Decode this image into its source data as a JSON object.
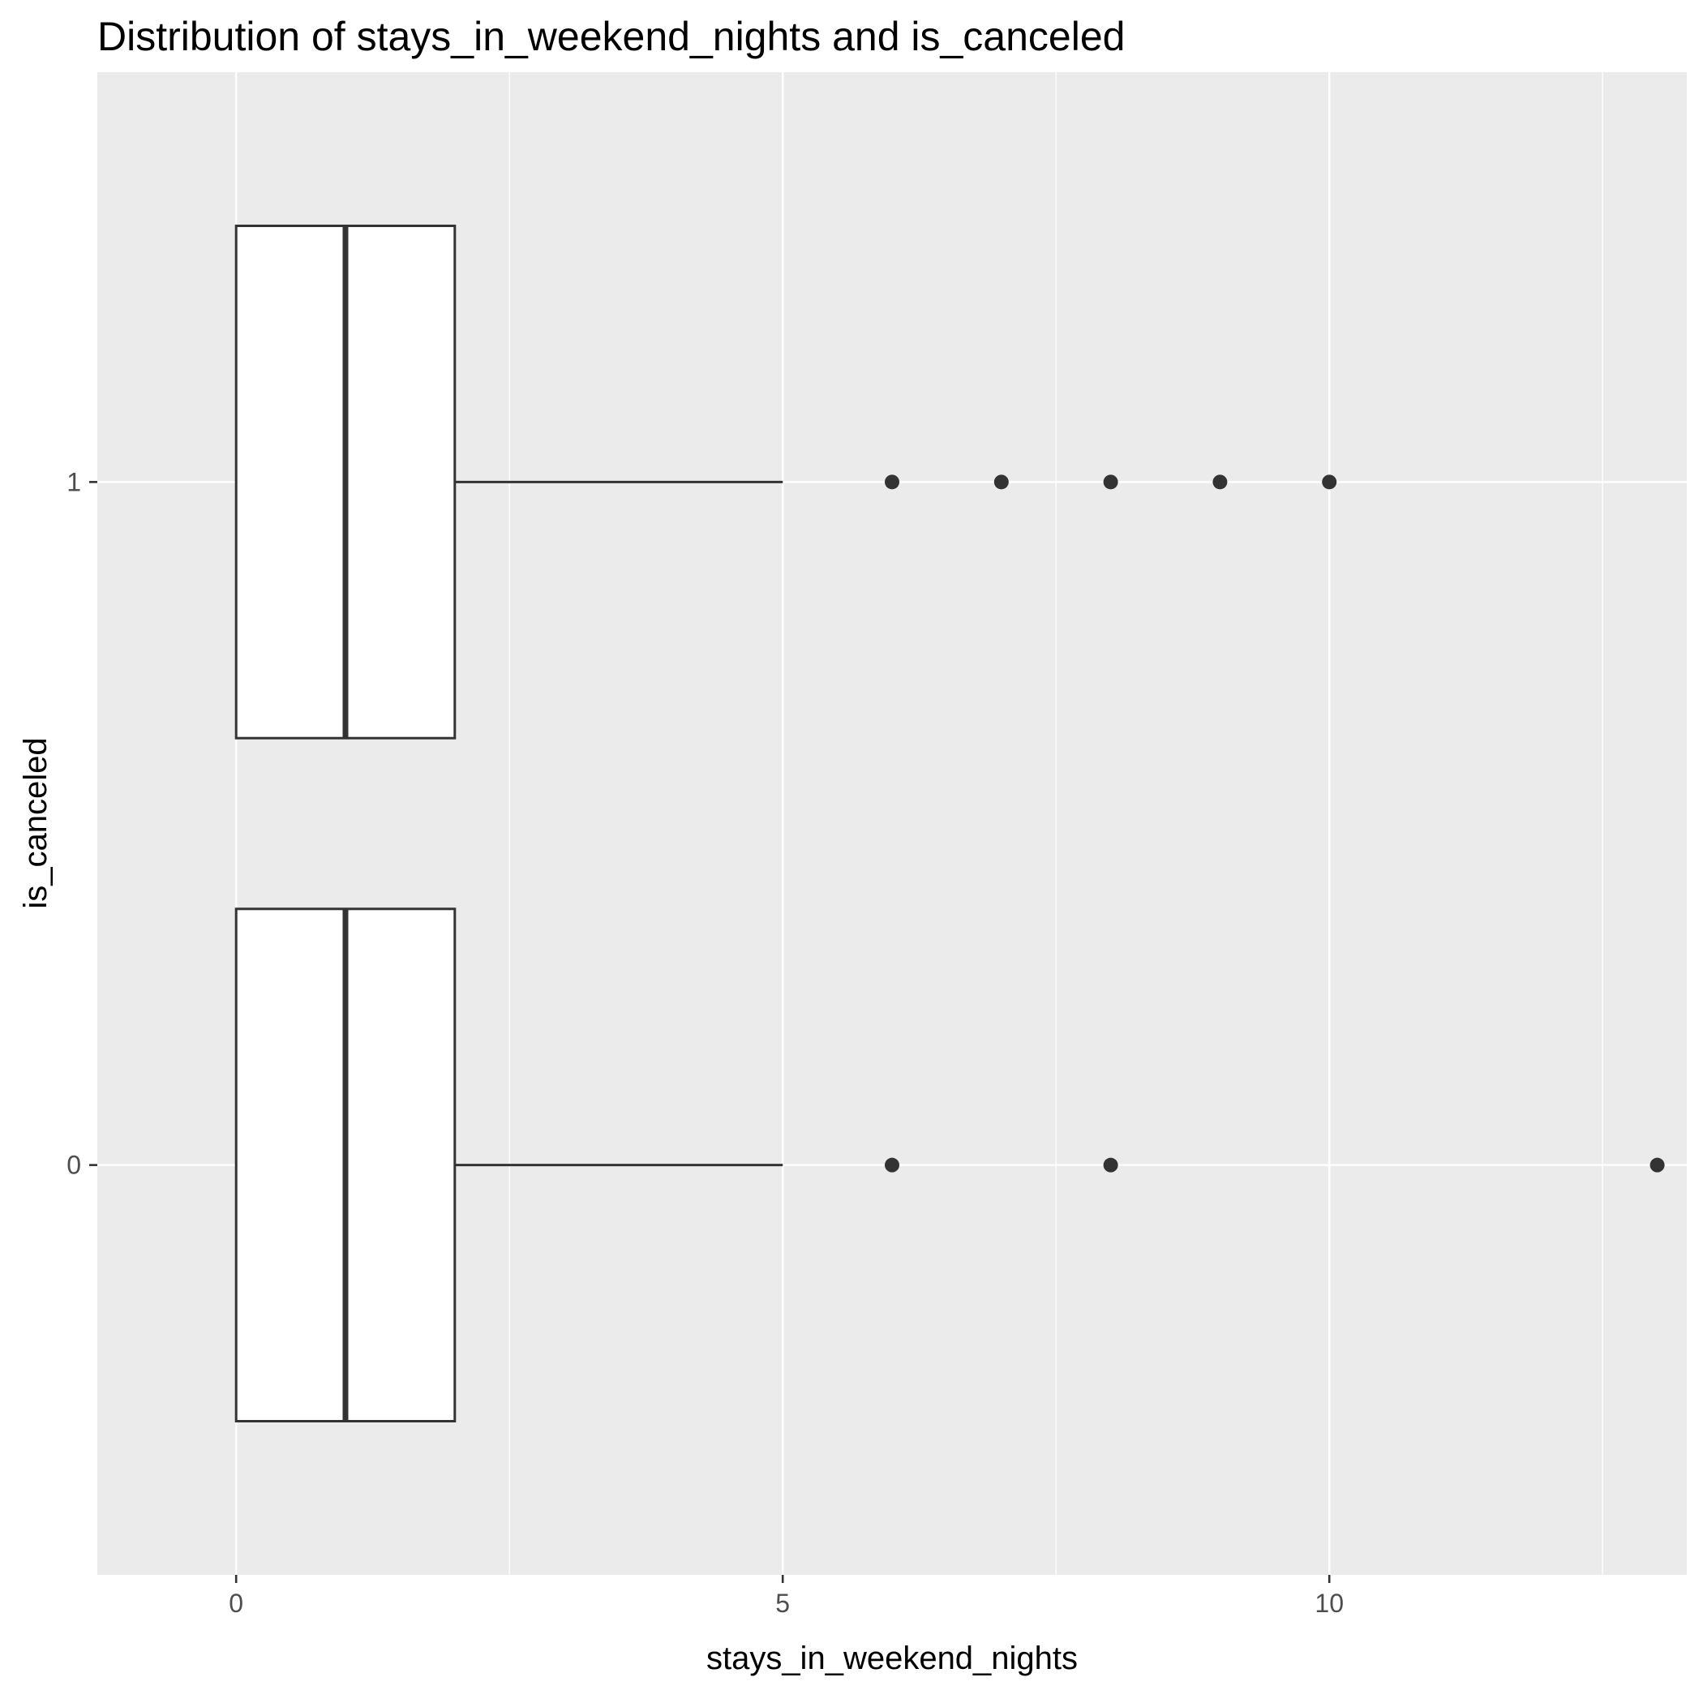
{
  "chart_data": {
    "type": "boxplot",
    "orientation": "horizontal",
    "title": "Distribution of stays_in_weekend_nights and is_canceled",
    "xlabel": "stays_in_weekend_nights",
    "ylabel": "is_canceled",
    "xlim": [
      -1.27,
      13.27
    ],
    "x_ticks": [
      0,
      5,
      10
    ],
    "x_tick_labels": [
      "0",
      "5",
      "10"
    ],
    "categories": [
      "0",
      "1"
    ],
    "grid": true,
    "legend": "none",
    "colors": {
      "panel_background": "#ebebeb",
      "grid_line": "#ffffff",
      "box_fill": "#ffffff",
      "box_stroke": "#333333",
      "outlier": "#333333"
    },
    "boxes": [
      {
        "category": "0",
        "min": 0,
        "q1": 0,
        "median": 1,
        "q3": 2,
        "max": 5,
        "outliers": [
          6,
          8,
          13
        ]
      },
      {
        "category": "1",
        "min": 0,
        "q1": 0,
        "median": 1,
        "q3": 2,
        "max": 5,
        "outliers": [
          6,
          7,
          8,
          9,
          10
        ]
      }
    ]
  }
}
